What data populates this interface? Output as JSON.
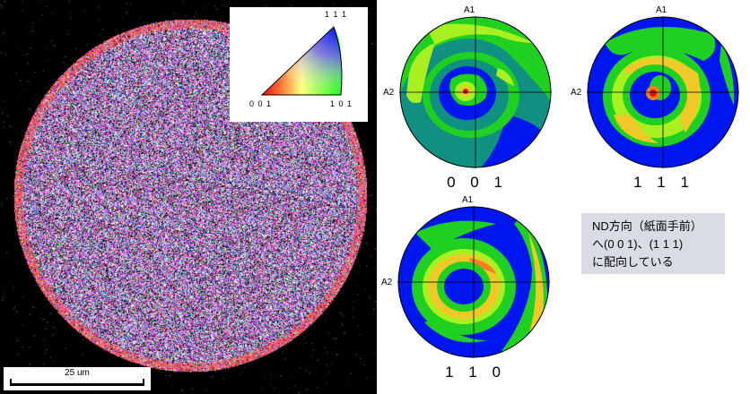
{
  "ipf_key": {
    "label_top": "1 1 1",
    "label_left": "0 0 1",
    "label_right": "1 0 1",
    "colors": {
      "red": "#ff0000",
      "green": "#00ff00",
      "blue": "#0000ff"
    }
  },
  "scalebar": {
    "label": "25 um"
  },
  "pole_figures": [
    {
      "caption": "0 0 1",
      "axis_top": "A1",
      "axis_left": "A2"
    },
    {
      "caption": "1 1 1",
      "axis_top": "A1",
      "axis_left": "A2"
    },
    {
      "caption": "1 1 0",
      "axis_top": "A1",
      "axis_left": "A2"
    }
  ],
  "note": {
    "line1": "ND方向（紙面手前）",
    "line2": "へ(0 0 1)、(1 1 1)",
    "line3": "に配向している"
  },
  "palette": {
    "blue": "#0016f0",
    "teal": "#109080",
    "green": "#20d020",
    "lime": "#a8f020",
    "yellow": "#f0c828",
    "orange": "#f08020",
    "red": "#e01010"
  }
}
